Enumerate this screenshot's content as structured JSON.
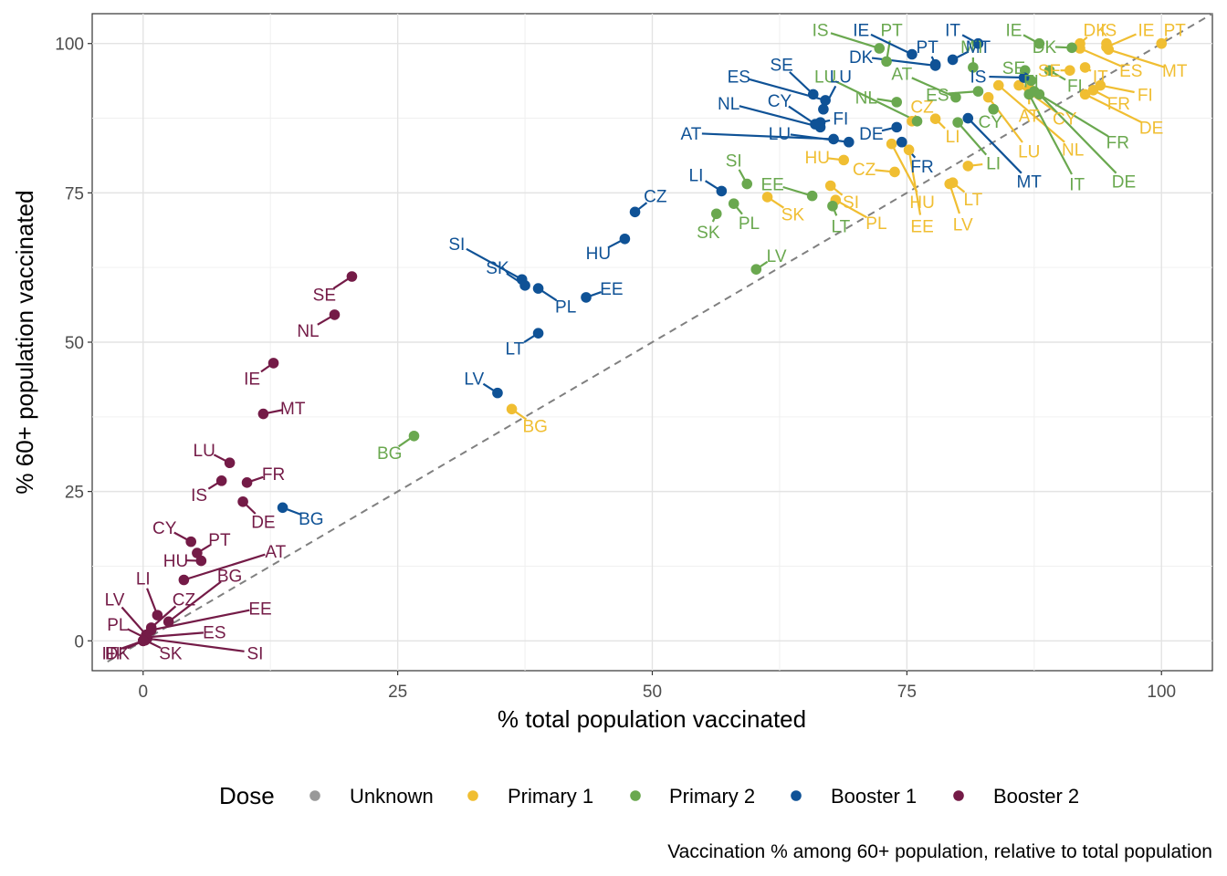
{
  "chart_data": {
    "type": "scatter",
    "title": "",
    "caption": "Vaccination % among 60+ population, relative to total population",
    "xlabel": "% total population vaccinated",
    "ylabel": "% 60+ population vaccinated",
    "xlim": [
      -5,
      105
    ],
    "ylim": [
      -5,
      105
    ],
    "xticks": [
      0,
      25,
      50,
      75,
      100
    ],
    "yticks": [
      0,
      25,
      50,
      75,
      100
    ],
    "grid": true,
    "reference_line": {
      "slope": 1,
      "intercept": 0,
      "style": "dashed",
      "color": "#808080"
    },
    "legend": {
      "title": "Dose",
      "position": "bottom",
      "entries": [
        {
          "name": "Unknown",
          "color": "#999999"
        },
        {
          "name": "Primary 1",
          "color": "#F0BE32"
        },
        {
          "name": "Primary 2",
          "color": "#6AA84F"
        },
        {
          "name": "Booster 1",
          "color": "#0F5296"
        },
        {
          "name": "Booster 2",
          "color": "#741B47"
        }
      ]
    },
    "series": [
      {
        "name": "Primary 1",
        "color": "#F0BE32",
        "points": [
          {
            "label": "DK",
            "x": 92.0,
            "y": 100.0,
            "lx": 93.5,
            "ly": 102.3
          },
          {
            "label": "IS",
            "x": 94.6,
            "y": 100.0,
            "lx": 94.8,
            "ly": 102.3
          },
          {
            "label": "IE",
            "x": 94.6,
            "y": 99.4,
            "lx": 98.5,
            "ly": 102.3
          },
          {
            "label": "PT",
            "x": 100.0,
            "y": 100.0,
            "lx": 101.3,
            "ly": 102.3
          },
          {
            "label": "MT",
            "x": 94.8,
            "y": 99.0,
            "lx": 101.3,
            "ly": 95.5
          },
          {
            "label": "ES",
            "x": 92.0,
            "y": 99.2,
            "lx": 97.0,
            "ly": 95.5
          },
          {
            "label": "SE",
            "x": 91.0,
            "y": 95.5,
            "lx": 89.0,
            "ly": 95.5
          },
          {
            "label": "IT",
            "x": 92.5,
            "y": 96.0,
            "lx": 94.0,
            "ly": 94.5
          },
          {
            "label": "FI",
            "x": 94.0,
            "y": 93.0,
            "lx": 98.4,
            "ly": 91.5
          },
          {
            "label": "FR",
            "x": 93.3,
            "y": 92.2,
            "lx": 95.8,
            "ly": 90.0
          },
          {
            "label": "DE",
            "x": 92.5,
            "y": 91.5,
            "lx": 99.0,
            "ly": 86.0
          },
          {
            "label": "AT",
            "x": 87.0,
            "y": 92.5,
            "lx": 87.0,
            "ly": 88.0
          },
          {
            "label": "CY",
            "x": 86.0,
            "y": 93.0,
            "lx": 90.5,
            "ly": 87.5
          },
          {
            "label": "LU",
            "x": 83.0,
            "y": 91.0,
            "lx": 87.0,
            "ly": 82.0
          },
          {
            "label": "NL",
            "x": 84.0,
            "y": 93.0,
            "lx": 91.3,
            "ly": 82.3
          },
          {
            "label": "CZ",
            "x": 75.5,
            "y": 87.0,
            "lx": 76.5,
            "ly": 89.5
          },
          {
            "label": "LI",
            "x": 77.8,
            "y": 87.4,
            "lx": 79.5,
            "ly": 84.5
          },
          {
            "label": "HU",
            "x": 68.8,
            "y": 80.5,
            "lx": 66.2,
            "ly": 81.0
          },
          {
            "label": "SI",
            "x": 67.5,
            "y": 76.2,
            "lx": 69.5,
            "ly": 73.5
          },
          {
            "label": "HU",
            "x": 73.5,
            "y": 83.2,
            "lx": 76.5,
            "ly": 73.5
          },
          {
            "label": "LT",
            "x": 79.5,
            "y": 76.7,
            "lx": 81.5,
            "ly": 74.0
          },
          {
            "label": "LI",
            "x": 81.0,
            "y": 79.5,
            "lx": 83.5,
            "ly": 80.0
          },
          {
            "label": "CZ",
            "x": 73.8,
            "y": 78.5,
            "lx": 70.8,
            "ly": 79.0
          },
          {
            "label": "EE",
            "x": 75.2,
            "y": 82.2,
            "lx": 76.5,
            "ly": 69.5
          },
          {
            "label": "LV",
            "x": 79.2,
            "y": 76.5,
            "lx": 80.5,
            "ly": 69.8
          },
          {
            "label": "SK",
            "x": 61.3,
            "y": 74.3,
            "lx": 63.8,
            "ly": 71.5
          },
          {
            "label": "PL",
            "x": 68.0,
            "y": 73.8,
            "lx": 72.0,
            "ly": 70.0
          },
          {
            "label": "BG",
            "x": 36.2,
            "y": 38.8,
            "lx": 38.5,
            "ly": 36.0
          }
        ]
      },
      {
        "name": "Primary 2",
        "color": "#6AA84F",
        "points": [
          {
            "label": "IS",
            "x": 72.3,
            "y": 99.2,
            "lx": 66.5,
            "ly": 102.3
          },
          {
            "label": "PT",
            "x": 73.0,
            "y": 97.0,
            "lx": 73.5,
            "ly": 102.3
          },
          {
            "label": "MT",
            "x": 81.5,
            "y": 96.0,
            "lx": 81.5,
            "ly": 99.5
          },
          {
            "label": "IE",
            "x": 88.0,
            "y": 100.0,
            "lx": 85.5,
            "ly": 102.3
          },
          {
            "label": "DK",
            "x": 91.2,
            "y": 99.3,
            "lx": 88.5,
            "ly": 99.5
          },
          {
            "label": "SE",
            "x": 86.6,
            "y": 95.5,
            "lx": 85.5,
            "ly": 96.0
          },
          {
            "label": "FI",
            "x": 89.0,
            "y": 95.5,
            "lx": 91.5,
            "ly": 93.0
          },
          {
            "label": "AT",
            "x": 79.8,
            "y": 91.0,
            "lx": 74.5,
            "ly": 95.0
          },
          {
            "label": "LU",
            "x": 76.0,
            "y": 87.0,
            "lx": 67.0,
            "ly": 94.5
          },
          {
            "label": "NL",
            "x": 74.0,
            "y": 90.2,
            "lx": 71.0,
            "ly": 91.0
          },
          {
            "label": "ES",
            "x": 82.0,
            "y": 92.0,
            "lx": 78.0,
            "ly": 91.5
          },
          {
            "label": "CY",
            "x": 83.5,
            "y": 89.0,
            "lx": 83.2,
            "ly": 87.0
          },
          {
            "label": "LI",
            "x": 80.0,
            "y": 86.8,
            "lx": 83.5,
            "ly": 80.0
          },
          {
            "label": "SI",
            "x": 59.3,
            "y": 76.5,
            "lx": 58.0,
            "ly": 80.5
          },
          {
            "label": "EE",
            "x": 65.7,
            "y": 74.5,
            "lx": 61.8,
            "ly": 76.5
          },
          {
            "label": "PL",
            "x": 58.0,
            "y": 73.2,
            "lx": 59.5,
            "ly": 70.0
          },
          {
            "label": "SK",
            "x": 56.3,
            "y": 71.5,
            "lx": 55.5,
            "ly": 68.5
          },
          {
            "label": "LT",
            "x": 67.7,
            "y": 72.8,
            "lx": 68.5,
            "ly": 69.5
          },
          {
            "label": "LV",
            "x": 60.2,
            "y": 62.2,
            "lx": 62.2,
            "ly": 64.5
          },
          {
            "label": "IT",
            "x": 87.0,
            "y": 91.5,
            "lx": 91.7,
            "ly": 76.5
          },
          {
            "label": "FR",
            "x": 87.5,
            "y": 92.0,
            "lx": 95.7,
            "ly": 83.5
          },
          {
            "label": "DE",
            "x": 88.0,
            "y": 91.5,
            "lx": 96.3,
            "ly": 77.0
          },
          {
            "label": "FI",
            "x": 87.2,
            "y": 93.8,
            "lx": 87.2,
            "ly": 93.8
          },
          {
            "label": "BG",
            "x": 26.6,
            "y": 34.3,
            "lx": 24.2,
            "ly": 31.5
          }
        ]
      },
      {
        "name": "Booster 1",
        "color": "#0F5296",
        "points": [
          {
            "label": "IE",
            "x": 75.5,
            "y": 98.2,
            "lx": 70.5,
            "ly": 102.3
          },
          {
            "label": "PT",
            "x": 77.8,
            "y": 96.5,
            "lx": 77.0,
            "ly": 99.5
          },
          {
            "label": "IT",
            "x": 82.0,
            "y": 100.0,
            "lx": 79.5,
            "ly": 102.3
          },
          {
            "label": "MT",
            "x": 79.5,
            "y": 97.3,
            "lx": 82.0,
            "ly": 99.5
          },
          {
            "label": "DK",
            "x": 77.8,
            "y": 96.3,
            "lx": 70.5,
            "ly": 97.8
          },
          {
            "label": "SE",
            "x": 65.8,
            "y": 91.5,
            "lx": 62.7,
            "ly": 96.5
          },
          {
            "label": "ES",
            "x": 67.0,
            "y": 90.5,
            "lx": 58.5,
            "ly": 94.5
          },
          {
            "label": "LU",
            "x": 66.8,
            "y": 89.0,
            "lx": 68.5,
            "ly": 94.5
          },
          {
            "label": "NL",
            "x": 66.5,
            "y": 86.0,
            "lx": 57.5,
            "ly": 90.0
          },
          {
            "label": "CY",
            "x": 66.0,
            "y": 86.5,
            "lx": 62.5,
            "ly": 90.5
          },
          {
            "label": "FI",
            "x": 66.5,
            "y": 86.8,
            "lx": 68.5,
            "ly": 87.5
          },
          {
            "label": "AT",
            "x": 67.8,
            "y": 84.0,
            "lx": 53.8,
            "ly": 85.0
          },
          {
            "label": "LU",
            "x": 69.3,
            "y": 83.5,
            "lx": 62.5,
            "ly": 85.0
          },
          {
            "label": "DE",
            "x": 74.0,
            "y": 86.0,
            "lx": 71.5,
            "ly": 85.0
          },
          {
            "label": "FR",
            "x": 74.5,
            "y": 83.5,
            "lx": 76.5,
            "ly": 79.5
          },
          {
            "label": "IS",
            "x": 86.5,
            "y": 94.3,
            "lx": 82.0,
            "ly": 94.5
          },
          {
            "label": "MT",
            "x": 81.0,
            "y": 87.5,
            "lx": 87.0,
            "ly": 77.0
          },
          {
            "label": "LI",
            "x": 56.8,
            "y": 75.3,
            "lx": 54.3,
            "ly": 78.0
          },
          {
            "label": "CZ",
            "x": 48.3,
            "y": 71.8,
            "lx": 50.3,
            "ly": 74.5
          },
          {
            "label": "HU",
            "x": 47.3,
            "y": 67.3,
            "lx": 44.7,
            "ly": 65.0
          },
          {
            "label": "SI",
            "x": 37.2,
            "y": 60.5,
            "lx": 30.8,
            "ly": 66.5
          },
          {
            "label": "SK",
            "x": 37.5,
            "y": 59.5,
            "lx": 34.8,
            "ly": 62.5
          },
          {
            "label": "PL",
            "x": 38.8,
            "y": 59.0,
            "lx": 41.5,
            "ly": 56.0
          },
          {
            "label": "EE",
            "x": 43.5,
            "y": 57.5,
            "lx": 46.0,
            "ly": 59.0
          },
          {
            "label": "LT",
            "x": 38.8,
            "y": 51.5,
            "lx": 36.5,
            "ly": 49.0
          },
          {
            "label": "LV",
            "x": 34.8,
            "y": 41.5,
            "lx": 32.5,
            "ly": 44.0
          },
          {
            "label": "BG",
            "x": 13.7,
            "y": 22.3,
            "lx": 16.5,
            "ly": 20.5
          }
        ]
      },
      {
        "name": "Booster 2",
        "color": "#741B47",
        "points": [
          {
            "label": "SE",
            "x": 20.5,
            "y": 61.0,
            "lx": 17.8,
            "ly": 58.0
          },
          {
            "label": "NL",
            "x": 18.8,
            "y": 54.6,
            "lx": 16.2,
            "ly": 52.0
          },
          {
            "label": "IE",
            "x": 12.8,
            "y": 46.5,
            "lx": 10.7,
            "ly": 44.0
          },
          {
            "label": "MT",
            "x": 11.8,
            "y": 38.0,
            "lx": 14.7,
            "ly": 39.0
          },
          {
            "label": "LU",
            "x": 8.5,
            "y": 29.8,
            "lx": 6.0,
            "ly": 32.0
          },
          {
            "label": "FR",
            "x": 10.2,
            "y": 26.5,
            "lx": 12.8,
            "ly": 28.0
          },
          {
            "label": "IS",
            "x": 7.7,
            "y": 26.8,
            "lx": 5.5,
            "ly": 24.5
          },
          {
            "label": "DE",
            "x": 9.8,
            "y": 23.3,
            "lx": 11.8,
            "ly": 20.0
          },
          {
            "label": "CY",
            "x": 4.7,
            "y": 16.6,
            "lx": 2.1,
            "ly": 19.0
          },
          {
            "label": "PT",
            "x": 5.3,
            "y": 14.7,
            "lx": 7.5,
            "ly": 17.0
          },
          {
            "label": "HU",
            "x": 5.7,
            "y": 13.4,
            "lx": 3.2,
            "ly": 13.5
          },
          {
            "label": "AT",
            "x": 4.0,
            "y": 10.2,
            "lx": 13.0,
            "ly": 15.0
          },
          {
            "label": "LI",
            "x": 1.4,
            "y": 4.3,
            "lx": 0.0,
            "ly": 10.5
          },
          {
            "label": "BG",
            "x": 2.5,
            "y": 3.2,
            "lx": 8.5,
            "ly": 11.0
          },
          {
            "label": "CZ",
            "x": 0.8,
            "y": 2.2,
            "lx": 4.0,
            "ly": 7.0
          },
          {
            "label": "EE",
            "x": 0.8,
            "y": 1.8,
            "lx": 11.5,
            "ly": 5.5
          },
          {
            "label": "LV",
            "x": 0.3,
            "y": 1.0,
            "lx": -2.8,
            "ly": 7.0
          },
          {
            "label": "PL",
            "x": 0.2,
            "y": 0.5,
            "lx": -2.5,
            "ly": 2.8
          },
          {
            "label": "ES",
            "x": 0.3,
            "y": 0.6,
            "lx": 7.0,
            "ly": 1.5
          },
          {
            "label": "SK",
            "x": 0.2,
            "y": 0.1,
            "lx": 2.7,
            "ly": -2.0
          },
          {
            "label": "SI",
            "x": 0.4,
            "y": 0.4,
            "lx": 11.0,
            "ly": -2.0
          },
          {
            "label": "DK",
            "x": 0.0,
            "y": 0.0,
            "lx": -2.5,
            "ly": -2.0
          },
          {
            "label": "FI",
            "x": 0.0,
            "y": 0.0,
            "lx": -3.0,
            "ly": -2.0
          },
          {
            "label": "IT",
            "x": 0.0,
            "y": 0.0,
            "lx": -3.3,
            "ly": -2.0
          }
        ]
      }
    ]
  }
}
